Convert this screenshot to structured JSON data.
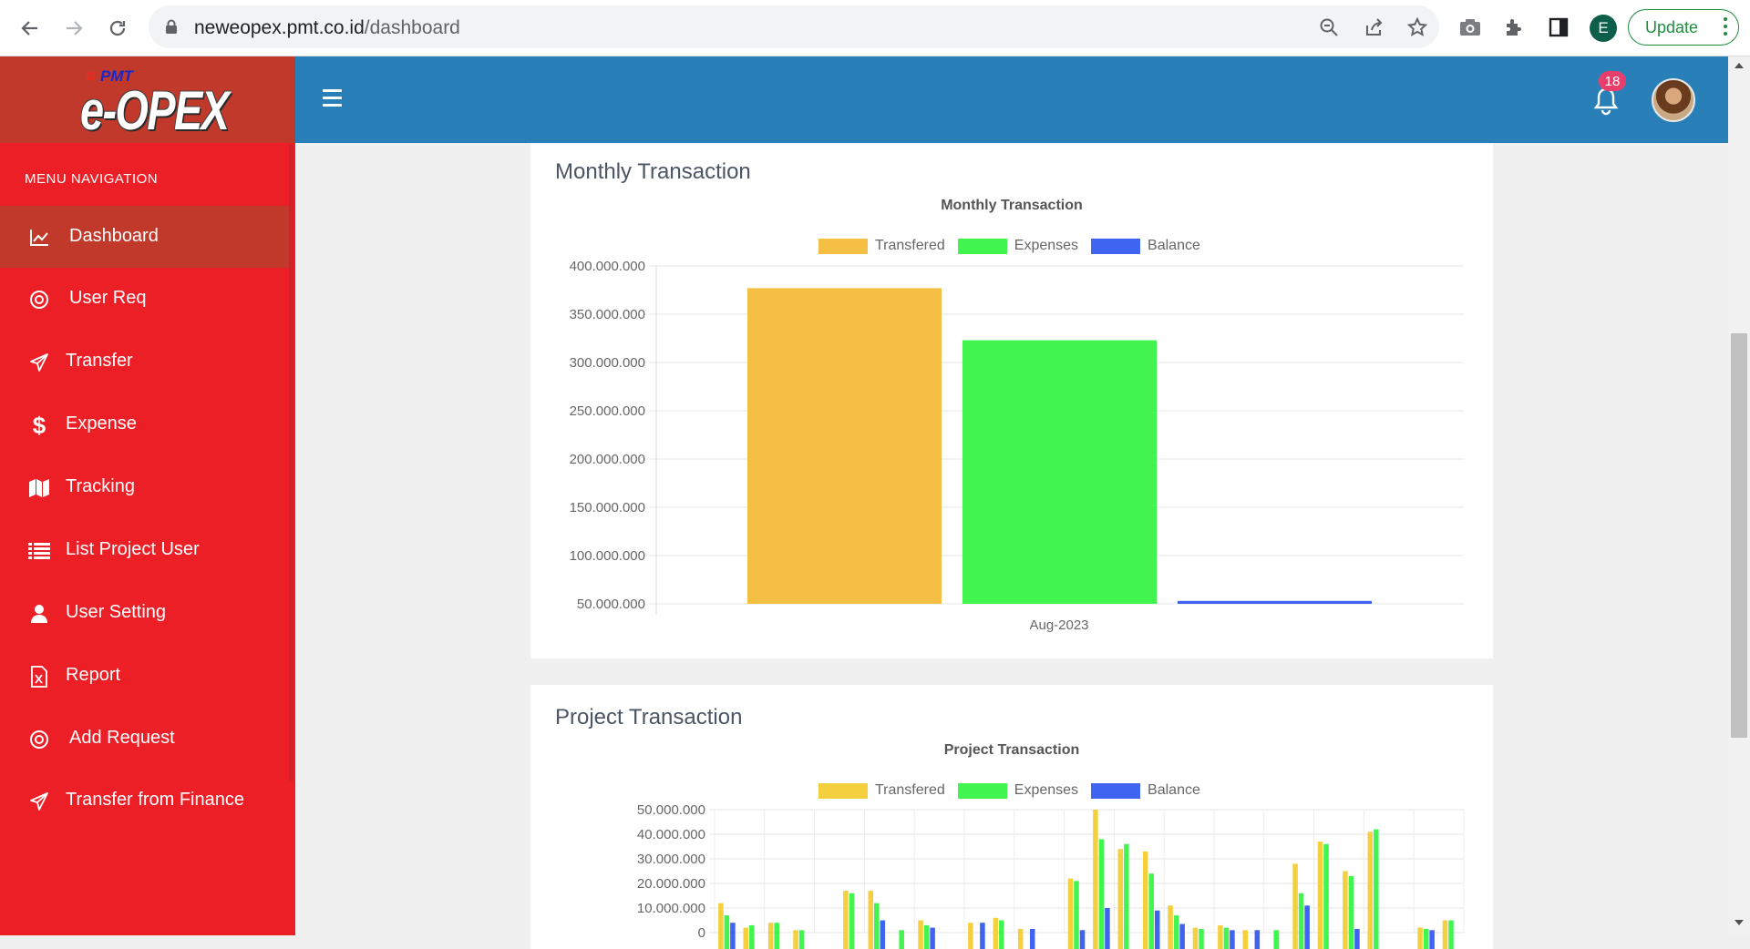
{
  "browser": {
    "url_host": "neweopex.pmt.co.id",
    "url_path": "/dashboard",
    "profile_initial": "E",
    "update_label": "Update"
  },
  "brand": {
    "pmt": "PMT",
    "logo": "e-OPEX"
  },
  "sidebar": {
    "title": "MENU NAVIGATION",
    "items": [
      {
        "label": "Dashboard",
        "icon": "chart-line-icon",
        "active": true
      },
      {
        "label": "User Req",
        "icon": "life-ring-icon"
      },
      {
        "label": "Transfer",
        "icon": "paper-plane-icon"
      },
      {
        "label": "Expense",
        "icon": "dollar-icon"
      },
      {
        "label": "Tracking",
        "icon": "map-icon"
      },
      {
        "label": "List Project User",
        "icon": "list-icon"
      },
      {
        "label": "User Setting",
        "icon": "user-icon"
      },
      {
        "label": "Report",
        "icon": "excel-file-icon"
      },
      {
        "label": "Add Request",
        "icon": "life-ring-icon"
      },
      {
        "label": "Transfer from Finance",
        "icon": "paper-plane-icon"
      }
    ]
  },
  "header": {
    "notification_count": "18"
  },
  "colors": {
    "transfered": "#f4bf42",
    "expenses": "#42f450",
    "balance": "#3f64f0",
    "sidebar": "#ec1f27",
    "topbar": "#2980b9"
  },
  "monthly": {
    "card_title": "Monthly Transaction"
  },
  "project": {
    "card_title": "Project Transaction"
  },
  "chart_data": [
    {
      "type": "bar",
      "title": "Monthly Transaction",
      "categories": [
        "Aug-2023"
      ],
      "series": [
        {
          "name": "Transfered",
          "values": [
            377000000
          ]
        },
        {
          "name": "Expenses",
          "values": [
            323000000
          ]
        },
        {
          "name": "Balance",
          "values": [
            53000000
          ]
        }
      ],
      "y_ticks": [
        "400.000.000",
        "350.000.000",
        "300.000.000",
        "250.000.000",
        "200.000.000",
        "150.000.000",
        "100.000.000",
        "50.000.000"
      ],
      "ylim": [
        50000000,
        400000000
      ],
      "legend": "top",
      "grid": true
    },
    {
      "type": "bar",
      "title": "Project Transaction",
      "series": [
        {
          "name": "Transfered",
          "values": [
            12000000,
            2000000,
            4000000,
            1000000,
            0,
            17000000,
            17000000,
            0,
            5000000,
            0,
            4000000,
            6000000,
            1500000,
            0,
            22000000,
            50000000,
            34000000,
            33000000,
            11000000,
            2000000,
            3000000,
            1000000,
            0,
            28000000,
            37000000,
            25000000,
            41000000,
            0,
            2000000,
            5000000
          ]
        },
        {
          "name": "Expenses",
          "values": [
            7000000,
            3000000,
            4000000,
            1000000,
            0,
            16000000,
            12000000,
            1000000,
            3000000,
            0,
            0,
            5000000,
            0,
            0,
            21000000,
            38000000,
            36000000,
            24000000,
            7000000,
            1500000,
            2000000,
            0,
            1000000,
            16000000,
            36000000,
            23000000,
            42000000,
            0,
            1500000,
            5000000
          ]
        },
        {
          "name": "Balance",
          "values": [
            4000000,
            0,
            0,
            0,
            0,
            0,
            5000000,
            0,
            2000000,
            0,
            4000000,
            0,
            1500000,
            0,
            1000000,
            10000000,
            0,
            9000000,
            3500000,
            0,
            1000000,
            1000000,
            0,
            11000000,
            0,
            1500000,
            0,
            0,
            1000000,
            0
          ]
        }
      ],
      "y_ticks": [
        "50.000.000",
        "40.000.000",
        "30.000.000",
        "20.000.000",
        "10.000.000",
        "0"
      ],
      "ylim": [
        0,
        50000000
      ],
      "legend": "top",
      "grid": true
    }
  ]
}
